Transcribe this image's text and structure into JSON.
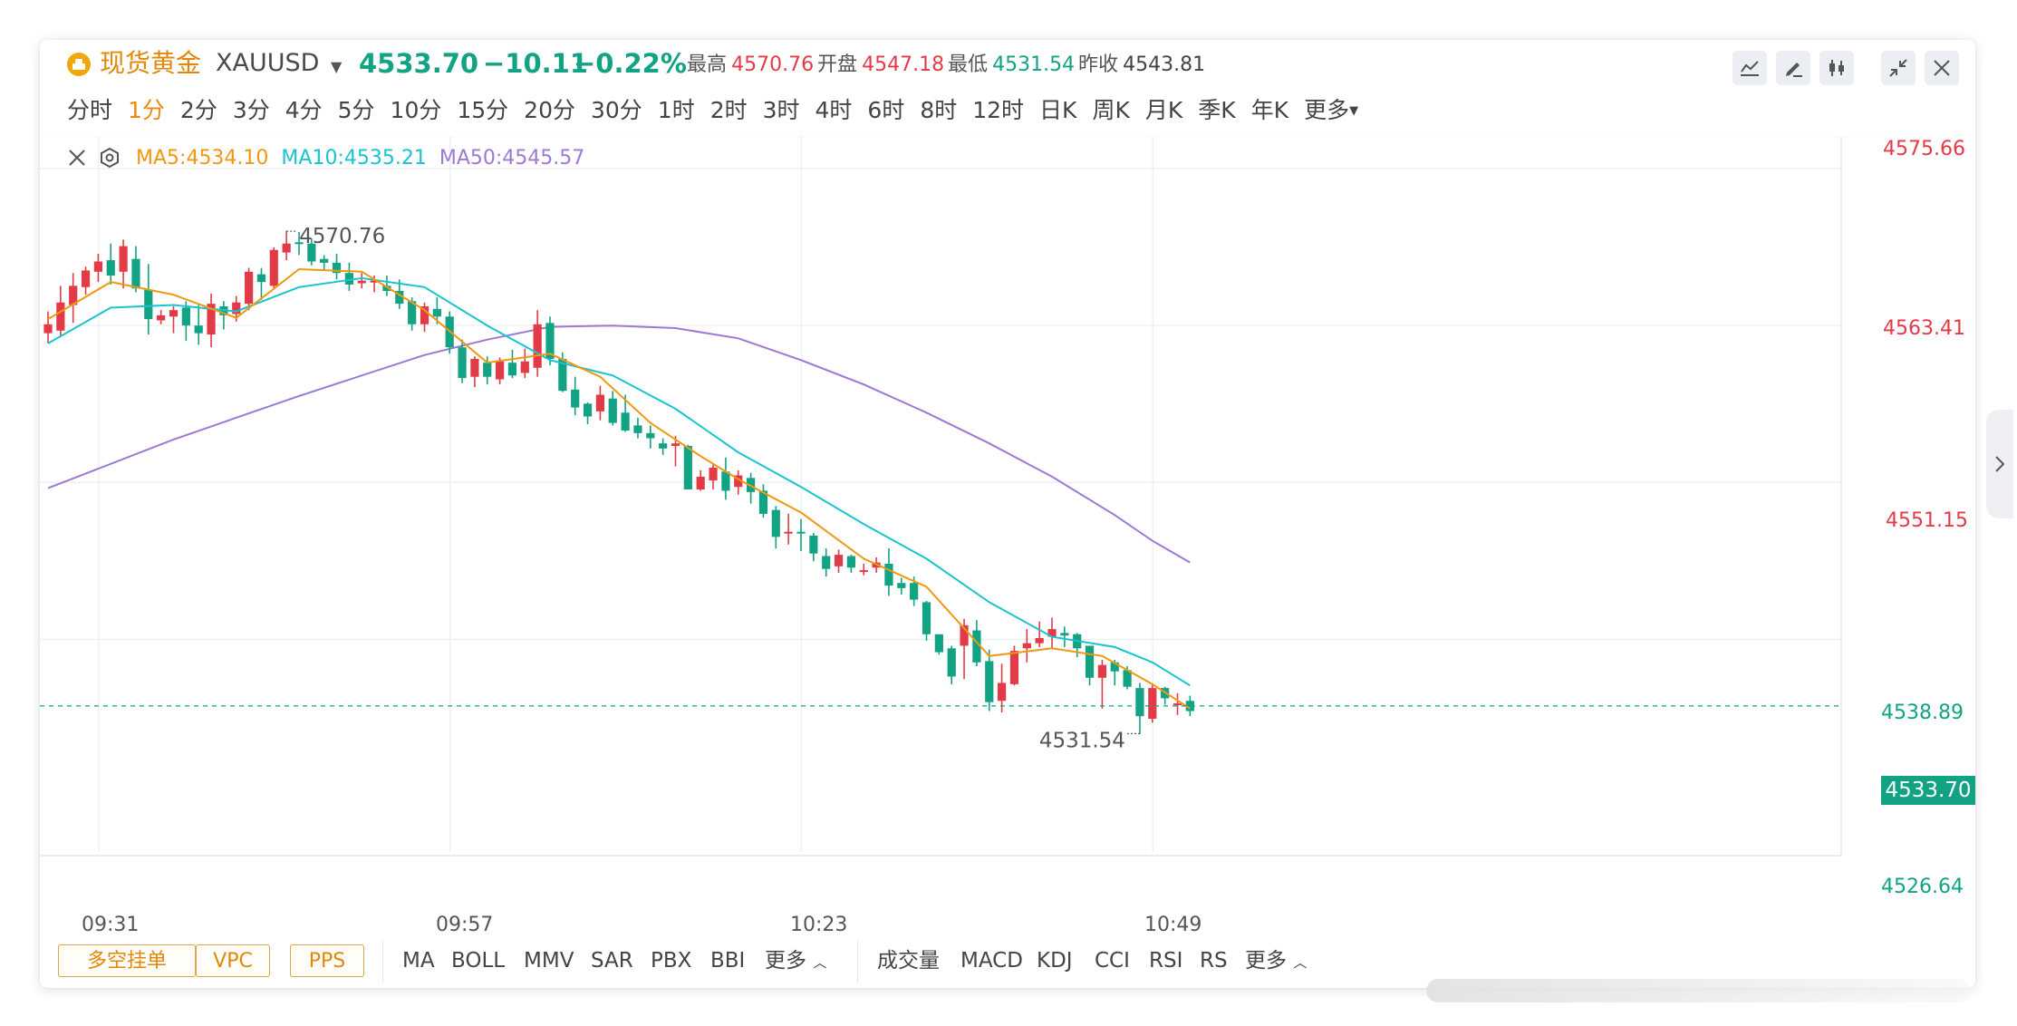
{
  "header": {
    "name": "现货黄金",
    "code": "XAUUSD",
    "price": "4533.70",
    "change": "−10.11",
    "change_pct": "−0.22%",
    "stats": [
      {
        "label": "最高",
        "value": "4570.76",
        "color": "#e23b47"
      },
      {
        "label": "开盘",
        "value": "4547.18",
        "color": "#e23b47"
      },
      {
        "label": "最低",
        "value": "4531.54",
        "color": "#12a385"
      },
      {
        "label": "昨收",
        "value": "4543.81",
        "color": "#444444"
      }
    ],
    "toolbar_icons": [
      "line-chart-icon",
      "draw-pencil-icon",
      "candlestick-icon",
      "collapse-icon",
      "close-icon"
    ]
  },
  "periods": {
    "items": [
      "分时",
      "1分",
      "2分",
      "3分",
      "4分",
      "5分",
      "10分",
      "15分",
      "20分",
      "30分",
      "1时",
      "2时",
      "3时",
      "4时",
      "6时",
      "8时",
      "12时",
      "日K",
      "周K",
      "月K",
      "季K",
      "年K"
    ],
    "active": "1分",
    "more": "更多"
  },
  "ma_legend": {
    "ma5": "MA5:4534.10",
    "ma10": "MA10:4535.21",
    "ma50": "MA50:4545.57"
  },
  "colors": {
    "up": "#e23b47",
    "down": "#12a385",
    "ma5": "#f0980f",
    "ma10": "#19c4cf",
    "ma50": "#9d79d6",
    "accent": "#f0870f"
  },
  "chart_data": {
    "type": "candlestick",
    "symbol": "XAUUSD",
    "y_axis_labels": [
      "4575.66",
      "4563.41",
      "4551.15",
      "4538.89",
      "4533.70",
      "4526.64"
    ],
    "x_axis_labels": [
      "09:31",
      "09:57",
      "10:23",
      "10:49"
    ],
    "last_price": 4533.7,
    "high": 4570.76,
    "low": 4531.54,
    "high_label": "4570.76",
    "low_label": "4531.54",
    "ylim": [
      4522.3,
      4578.2
    ],
    "candles": [
      [
        4562.8,
        4563.5,
        4562.0,
        4564.5
      ],
      [
        4563.0,
        4565.2,
        4562.6,
        4566.5
      ],
      [
        4565.0,
        4566.5,
        4563.6,
        4567.5
      ],
      [
        4566.4,
        4567.7,
        4565.8,
        4568.0
      ],
      [
        4567.6,
        4568.4,
        4566.8,
        4569.0
      ],
      [
        4568.5,
        4567.3,
        4566.6,
        4569.8
      ],
      [
        4567.6,
        4569.6,
        4566.3,
        4570.1
      ],
      [
        4568.6,
        4566.3,
        4566.0,
        4569.6
      ],
      [
        4566.2,
        4563.9,
        4562.7,
        4568.2
      ],
      [
        4563.8,
        4564.2,
        4563.5,
        4564.6
      ],
      [
        4564.1,
        4564.6,
        4562.8,
        4564.9
      ],
      [
        4564.8,
        4563.4,
        4562.2,
        4565.3
      ],
      [
        4563.4,
        4562.8,
        4561.9,
        4565.0
      ],
      [
        4562.7,
        4565.1,
        4561.7,
        4565.9
      ],
      [
        4564.9,
        4564.2,
        4563.1,
        4565.3
      ],
      [
        4564.3,
        4565.2,
        4563.7,
        4565.7
      ],
      [
        4565.1,
        4567.6,
        4564.6,
        4567.9
      ],
      [
        4567.4,
        4566.8,
        4565.4,
        4567.9
      ],
      [
        4566.5,
        4569.3,
        4566.2,
        4569.5
      ],
      [
        4569.1,
        4569.8,
        4568.5,
        4570.8
      ],
      [
        4569.9,
        4569.8,
        4568.9,
        4570.7
      ],
      [
        4569.8,
        4568.4,
        4568.1,
        4570.2
      ],
      [
        4568.6,
        4568.3,
        4567.7,
        4568.9
      ],
      [
        4568.3,
        4567.5,
        4567.0,
        4569.0
      ],
      [
        4567.5,
        4566.6,
        4566.1,
        4568.3
      ],
      [
        4566.7,
        4566.9,
        4566.3,
        4567.5
      ],
      [
        4566.8,
        4566.9,
        4566.0,
        4567.3
      ],
      [
        4566.5,
        4566.1,
        4565.7,
        4567.3
      ],
      [
        4566.1,
        4565.1,
        4564.7,
        4567.0
      ],
      [
        4565.3,
        4563.5,
        4563.0,
        4565.6
      ],
      [
        4563.5,
        4564.9,
        4562.9,
        4565.2
      ],
      [
        4564.7,
        4564.1,
        4563.5,
        4565.6
      ],
      [
        4564.1,
        4561.7,
        4561.2,
        4564.5
      ],
      [
        4561.7,
        4559.3,
        4558.9,
        4562.3
      ],
      [
        4559.4,
        4560.8,
        4558.6,
        4561.0
      ],
      [
        4560.5,
        4559.4,
        4558.8,
        4561.0
      ],
      [
        4559.2,
        4560.6,
        4558.8,
        4560.9
      ],
      [
        4560.5,
        4559.5,
        4559.3,
        4561.5
      ],
      [
        4559.7,
        4560.6,
        4559.3,
        4561.6
      ],
      [
        4560.1,
        4563.5,
        4559.4,
        4564.6
      ],
      [
        4563.6,
        4560.8,
        4560.3,
        4564.1
      ],
      [
        4560.8,
        4558.3,
        4558.2,
        4561.3
      ],
      [
        4558.4,
        4557.0,
        4556.4,
        4559.4
      ],
      [
        4557.3,
        4556.3,
        4555.7,
        4557.4
      ],
      [
        4556.7,
        4558.0,
        4556.0,
        4558.7
      ],
      [
        4557.7,
        4555.8,
        4555.6,
        4558.3
      ],
      [
        4556.6,
        4555.2,
        4555.1,
        4558.0
      ],
      [
        4555.6,
        4555.0,
        4554.6,
        4556.2
      ],
      [
        4555.0,
        4554.6,
        4553.8,
        4555.6
      ],
      [
        4554.2,
        4553.8,
        4553.3,
        4554.6
      ],
      [
        4554.0,
        4554.2,
        4552.4,
        4554.8
      ],
      [
        4554.0,
        4550.6,
        4550.6,
        4554.1
      ],
      [
        4550.6,
        4551.6,
        4550.5,
        4552.1
      ],
      [
        4551.3,
        4552.3,
        4550.6,
        4552.6
      ],
      [
        4552.0,
        4550.5,
        4549.8,
        4553.1
      ],
      [
        4550.8,
        4551.7,
        4550.2,
        4552.1
      ],
      [
        4551.5,
        4550.4,
        4549.5,
        4551.9
      ],
      [
        4550.5,
        4548.7,
        4548.4,
        4551.0
      ],
      [
        4549.0,
        4546.9,
        4546.0,
        4549.3
      ],
      [
        4547.2,
        4547.3,
        4546.3,
        4548.7
      ],
      [
        4547.3,
        4547.2,
        4545.8,
        4548.3
      ],
      [
        4547.0,
        4545.6,
        4545.0,
        4547.2
      ],
      [
        4545.4,
        4544.4,
        4543.8,
        4546.0
      ],
      [
        4544.6,
        4545.5,
        4544.1,
        4545.9
      ],
      [
        4545.4,
        4544.5,
        4544.1,
        4545.5
      ],
      [
        4544.3,
        4544.3,
        4543.9,
        4544.8
      ],
      [
        4544.5,
        4544.9,
        4544.1,
        4545.3
      ],
      [
        4544.8,
        4543.1,
        4542.3,
        4546.0
      ],
      [
        4543.3,
        4542.9,
        4542.4,
        4543.7
      ],
      [
        4543.3,
        4542.0,
        4541.5,
        4543.8
      ],
      [
        4541.8,
        4539.3,
        4538.8,
        4541.9
      ],
      [
        4539.3,
        4537.9,
        4537.7,
        4539.3
      ],
      [
        4538.2,
        4536.0,
        4535.4,
        4538.4
      ],
      [
        4538.4,
        4540.0,
        4535.8,
        4540.5
      ],
      [
        4539.6,
        4537.1,
        4536.8,
        4540.4
      ],
      [
        4537.2,
        4534.0,
        4533.3,
        4538.1
      ],
      [
        4534.1,
        4535.5,
        4533.2,
        4537.0
      ],
      [
        4535.4,
        4538.0,
        4535.3,
        4538.4
      ],
      [
        4538.2,
        4538.6,
        4537.1,
        4539.7
      ],
      [
        4538.6,
        4539.0,
        4538.3,
        4540.3
      ],
      [
        4539.1,
        4539.7,
        4538.2,
        4540.6
      ],
      [
        4539.4,
        4539.2,
        4538.3,
        4539.9
      ],
      [
        4539.3,
        4538.2,
        4537.5,
        4539.4
      ],
      [
        4538.4,
        4535.9,
        4535.3,
        4538.4
      ],
      [
        4535.9,
        4536.9,
        4533.5,
        4537.3
      ],
      [
        4537.1,
        4536.4,
        4535.3,
        4537.3
      ],
      [
        4536.5,
        4535.2,
        4535.0,
        4536.8
      ],
      [
        4535.1,
        4532.9,
        4531.5,
        4535.5
      ],
      [
        4532.7,
        4535.1,
        4532.4,
        4535.4
      ],
      [
        4535.1,
        4534.3,
        4533.8,
        4535.2
      ],
      [
        4533.8,
        4533.9,
        4533.0,
        4534.7
      ],
      [
        4534.1,
        4533.3,
        4532.9,
        4534.5
      ]
    ],
    "ma5": [
      [
        0,
        4563.9
      ],
      [
        5,
        4566.8
      ],
      [
        10,
        4565.8
      ],
      [
        15,
        4564.0
      ],
      [
        20,
        4567.8
      ],
      [
        25,
        4567.6
      ],
      [
        30,
        4564.6
      ],
      [
        35,
        4560.5
      ],
      [
        40,
        4561.2
      ],
      [
        44,
        4559.4
      ],
      [
        48,
        4555.8
      ],
      [
        52,
        4553.2
      ],
      [
        55,
        4551.4
      ],
      [
        60,
        4548.8
      ],
      [
        65,
        4545.2
      ],
      [
        70,
        4543.0
      ],
      [
        75,
        4537.6
      ],
      [
        80,
        4538.2
      ],
      [
        84,
        4537.6
      ],
      [
        88,
        4535.4
      ],
      [
        91,
        4533.5
      ]
    ],
    "ma10": [
      [
        0,
        4562.0
      ],
      [
        5,
        4564.8
      ],
      [
        10,
        4565.0
      ],
      [
        15,
        4564.5
      ],
      [
        20,
        4566.4
      ],
      [
        25,
        4567.1
      ],
      [
        30,
        4566.4
      ],
      [
        35,
        4563.4
      ],
      [
        40,
        4560.7
      ],
      [
        45,
        4559.5
      ],
      [
        50,
        4556.9
      ],
      [
        55,
        4553.5
      ],
      [
        60,
        4550.8
      ],
      [
        65,
        4547.9
      ],
      [
        70,
        4545.2
      ],
      [
        75,
        4541.8
      ],
      [
        80,
        4539.1
      ],
      [
        85,
        4538.3
      ],
      [
        88,
        4537.1
      ],
      [
        91,
        4535.3
      ]
    ],
    "ma50": [
      [
        0,
        4550.7
      ],
      [
        10,
        4554.5
      ],
      [
        20,
        4557.9
      ],
      [
        30,
        4561.1
      ],
      [
        35,
        4562.3
      ],
      [
        40,
        4563.3
      ],
      [
        45,
        4563.4
      ],
      [
        50,
        4563.2
      ],
      [
        55,
        4562.4
      ],
      [
        60,
        4560.7
      ],
      [
        65,
        4558.8
      ],
      [
        70,
        4556.6
      ],
      [
        75,
        4554.2
      ],
      [
        80,
        4551.6
      ],
      [
        85,
        4548.6
      ],
      [
        88,
        4546.6
      ],
      [
        91,
        4544.9
      ]
    ]
  },
  "footer": {
    "tags": [
      "多空挂单",
      "VPC",
      "PPS"
    ],
    "main_indicators": [
      "MA",
      "BOLL",
      "MMV",
      "SAR",
      "PBX",
      "BBI"
    ],
    "more1": "更多",
    "sub_indicators": [
      "成交量",
      "MACD",
      "KDJ",
      "CCI",
      "RSI",
      "RS"
    ],
    "more2": "更多"
  }
}
